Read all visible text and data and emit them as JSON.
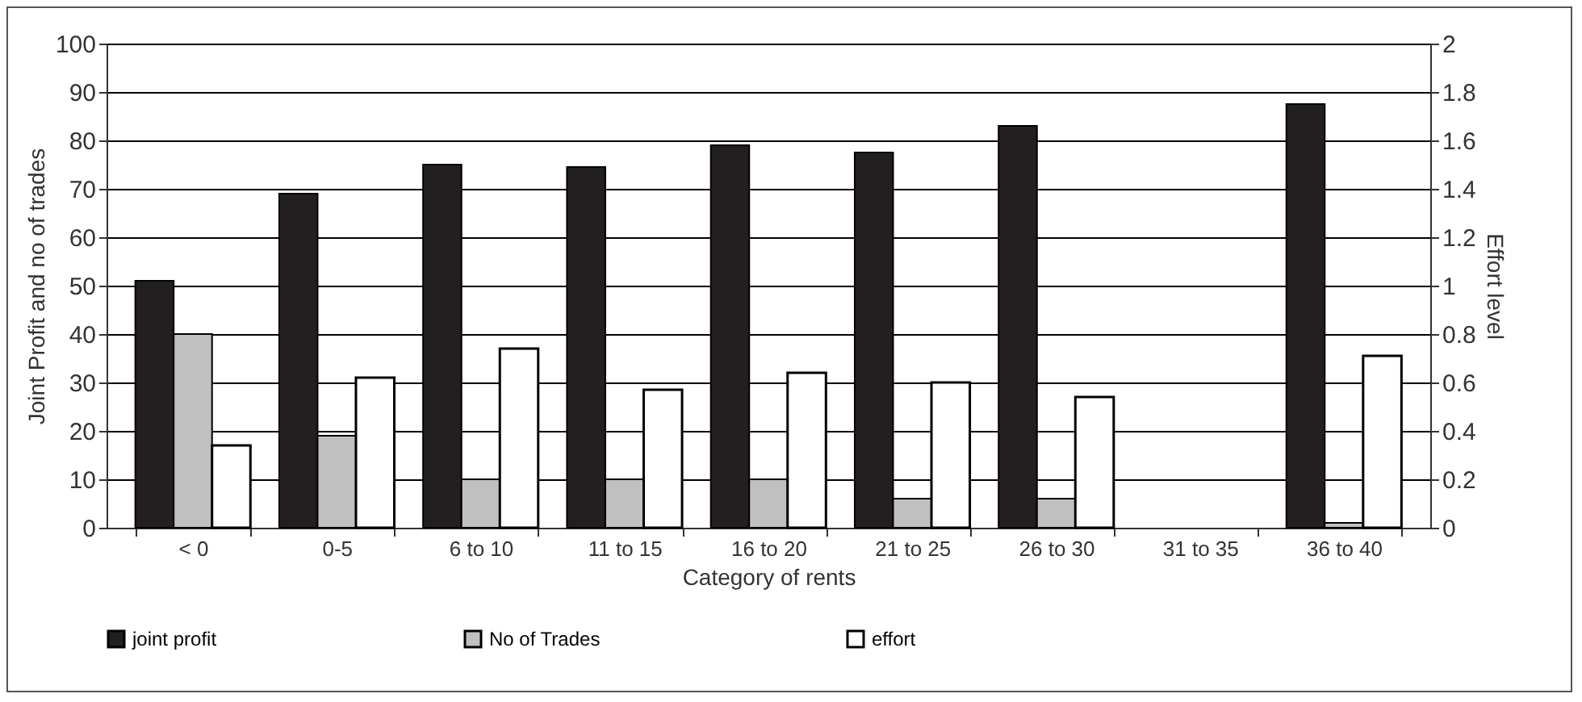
{
  "chart_data": {
    "type": "bar",
    "xlabel": "Category of rents",
    "ylabel": "Joint Profit and no of trades",
    "y2label": "Effort level",
    "categories": [
      "< 0",
      "0-5",
      "6 to 10",
      "11 to 15",
      "16 to 20",
      "21 to 25",
      "26 to 30",
      "31 to 35",
      "36 to 40"
    ],
    "series": [
      {
        "name": "joint profit",
        "color": "#231f20",
        "values": [
          51,
          69,
          75,
          74.5,
          79,
          77.5,
          83,
          null,
          87.5
        ]
      },
      {
        "name": "No of Trades",
        "color": "#c0c0c0",
        "values": [
          40,
          19,
          10,
          10,
          10,
          6,
          6,
          null,
          1
        ]
      },
      {
        "name": "effort",
        "color": "#ffffff",
        "axis": "y2",
        "values": [
          0.34,
          0.62,
          0.74,
          0.57,
          0.64,
          0.6,
          0.54,
          null,
          0.71
        ]
      }
    ],
    "ylim": [
      0,
      100
    ],
    "yticks": [
      0,
      10,
      20,
      30,
      40,
      50,
      60,
      70,
      80,
      90,
      100
    ],
    "y2lim": [
      0,
      2
    ],
    "y2ticks": [
      0,
      0.2,
      0.4,
      0.6,
      0.8,
      1,
      1.2,
      1.4,
      1.6,
      1.8,
      2
    ],
    "grid": "y",
    "legend": "bottom"
  }
}
